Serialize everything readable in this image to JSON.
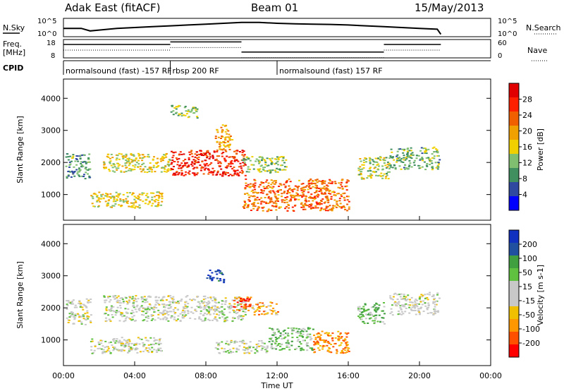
{
  "header": {
    "station": "Adak East (fitACF)",
    "beam": "Beam 01",
    "date": "15/May/2013"
  },
  "top_panel_labels": {
    "nsky": "N.Sky",
    "nsearch": "N.Search",
    "freq_line1": "Freq.",
    "freq_line2": "[MHz]",
    "nave": "Nave",
    "cpid": "CPID"
  },
  "cpid_segments": [
    {
      "start": 0,
      "end": 6,
      "label": "normalsound (fast) -157 RF"
    },
    {
      "start": 6,
      "end": 12,
      "label": "rbsp 200 RF"
    },
    {
      "start": 12,
      "end": 24,
      "label": "normalsound (fast) 157 RF"
    }
  ],
  "colors": {
    "power_scale": [
      "#0000ff",
      "#2f49a0",
      "#3f8f5f",
      "#7fbf6f",
      "#f0d000",
      "#f0a000",
      "#f06000",
      "#ff2000",
      "#e00000"
    ],
    "velocity_scale": [
      "#ff0000",
      "#ff5000",
      "#ff9800",
      "#f0c000",
      "#c8c8c8",
      "#c8c8c8",
      "#60c040",
      "#40a040",
      "#2050a0",
      "#1030c0"
    ]
  },
  "chart_data": [
    {
      "type": "line",
      "name": "noise",
      "ylabel_left": "N.Sky",
      "ylabel_right": "N.Search",
      "yticks": [
        "10^5",
        "10^0"
      ],
      "x": [
        0,
        1,
        1.5,
        2,
        3,
        4,
        5,
        6,
        7,
        8,
        9,
        10,
        11,
        12,
        13,
        14,
        15,
        16,
        17,
        18,
        19,
        20,
        21,
        21.2
      ],
      "values": [
        0.45,
        0.45,
        0.3,
        0.35,
        0.45,
        0.5,
        0.55,
        0.6,
        0.65,
        0.7,
        0.75,
        0.8,
        0.8,
        0.75,
        0.72,
        0.7,
        0.68,
        0.65,
        0.6,
        0.55,
        0.5,
        0.45,
        0.4,
        0.1
      ]
    },
    {
      "type": "line",
      "name": "frequency",
      "ylabel": "Freq. [MHz]",
      "yticks_left": [
        "18",
        "8"
      ],
      "yticks_right": [
        "60",
        "0"
      ],
      "segments": [
        {
          "start": 0,
          "end": 6,
          "freq_level": 0.75
        },
        {
          "start": 6,
          "end": 10,
          "freq_level": 0.9
        },
        {
          "start": 10,
          "end": 18,
          "freq_level": 0.3
        },
        {
          "start": 18,
          "end": 21.2,
          "freq_level": 0.75
        }
      ]
    },
    {
      "type": "heatmap",
      "name": "power",
      "ylabel": "Slant Range [km]",
      "yticks": [
        1000,
        2000,
        3000,
        4000
      ],
      "ylim": [
        200,
        4600
      ],
      "xlim": [
        0,
        24
      ],
      "colorbar_label": "Power [dB]",
      "colorbar_ticks": [
        "4",
        "8",
        "12",
        "16",
        "20",
        "24",
        "28"
      ],
      "regions": [
        {
          "t0": 0.1,
          "t1": 1.5,
          "r0": 1500,
          "r1": 2300,
          "level": 0.3
        },
        {
          "t0": 2.2,
          "t1": 6.0,
          "r0": 1700,
          "r1": 2300,
          "level": 0.5
        },
        {
          "t0": 6.0,
          "t1": 10.2,
          "r0": 1600,
          "r1": 2400,
          "level": 0.85
        },
        {
          "t0": 8.5,
          "t1": 9.5,
          "r0": 2400,
          "r1": 3200,
          "level": 0.6
        },
        {
          "t0": 6.0,
          "t1": 7.5,
          "r0": 3400,
          "r1": 3800,
          "level": 0.4
        },
        {
          "t0": 1.5,
          "t1": 5.5,
          "r0": 600,
          "r1": 1100,
          "level": 0.5
        },
        {
          "t0": 10.0,
          "t1": 16.0,
          "r0": 500,
          "r1": 1500,
          "level": 0.7
        },
        {
          "t0": 10.0,
          "t1": 12.5,
          "r0": 1700,
          "r1": 2200,
          "level": 0.4
        },
        {
          "t0": 16.5,
          "t1": 18.3,
          "r0": 1500,
          "r1": 2200,
          "level": 0.45
        },
        {
          "t0": 18.3,
          "t1": 21.1,
          "r0": 1800,
          "r1": 2500,
          "level": 0.35
        }
      ]
    },
    {
      "type": "heatmap",
      "name": "velocity",
      "ylabel": "Slant Range [km]",
      "yticks": [
        1000,
        2000,
        3000,
        4000
      ],
      "ylim": [
        200,
        4600
      ],
      "xlim": [
        0,
        24
      ],
      "colorbar_label": "Velocity [m s-1]",
      "colorbar_ticks": [
        "-200",
        "-100",
        "-50",
        "-15",
        "15",
        "50",
        "100",
        "200"
      ],
      "regions": [
        {
          "t0": 0.1,
          "t1": 1.5,
          "r0": 1500,
          "r1": 2300,
          "level": 0.5
        },
        {
          "t0": 2.2,
          "t1": 10.2,
          "r0": 1600,
          "r1": 2400,
          "level": 0.5
        },
        {
          "t0": 9.5,
          "t1": 10.5,
          "r0": 1900,
          "r1": 2400,
          "level": 0.15
        },
        {
          "t0": 10.5,
          "t1": 12.0,
          "r0": 1800,
          "r1": 2200,
          "level": 0.3
        },
        {
          "t0": 8.0,
          "t1": 9.0,
          "r0": 2800,
          "r1": 3200,
          "level": 0.9
        },
        {
          "t0": 1.5,
          "t1": 5.5,
          "r0": 600,
          "r1": 1100,
          "level": 0.5
        },
        {
          "t0": 8.5,
          "t1": 11.5,
          "r0": 600,
          "r1": 1000,
          "level": 0.5
        },
        {
          "t0": 11.5,
          "t1": 14.0,
          "r0": 700,
          "r1": 1400,
          "level": 0.65
        },
        {
          "t0": 14.0,
          "t1": 16.0,
          "r0": 600,
          "r1": 1300,
          "level": 0.25
        },
        {
          "t0": 16.5,
          "t1": 18.0,
          "r0": 1500,
          "r1": 2200,
          "level": 0.65
        },
        {
          "t0": 18.3,
          "t1": 21.1,
          "r0": 1800,
          "r1": 2500,
          "level": 0.5
        }
      ]
    }
  ],
  "xaxis": {
    "label": "Time UT",
    "ticks": [
      "00:00",
      "04:00",
      "08:00",
      "12:00",
      "16:00",
      "20:00",
      "00:00"
    ]
  }
}
